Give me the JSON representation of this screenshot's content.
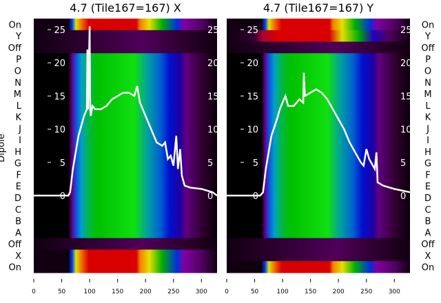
{
  "chart_data": [
    {
      "type": "heatmap",
      "title": "4.7 (Tile167=167) X",
      "ylabel": "Dipole",
      "rows": [
        "On",
        "Y",
        "Off",
        "P",
        "O",
        "N",
        "M",
        "L",
        "K",
        "J",
        "I",
        "H",
        "G",
        "F",
        "E",
        "D",
        "C",
        "B",
        "A",
        "Off",
        "X",
        "On"
      ],
      "row_kind": [
        "hot",
        "off",
        "off",
        "cool",
        "cool",
        "cool",
        "cool",
        "cool",
        "cool",
        "cool",
        "cool",
        "cool",
        "cool",
        "cool",
        "cool",
        "cool",
        "cool",
        "cool",
        "cool",
        "off",
        "hot",
        "hot"
      ],
      "xlim": [
        0,
        328
      ],
      "xticks": [
        0,
        50,
        100,
        150,
        200,
        250,
        300
      ],
      "overlay_yticks": [
        0,
        5,
        10,
        15,
        20,
        25
      ],
      "overlay_ylim": [
        -2.5,
        26.5
      ],
      "overlay_line": {
        "x": [
          0,
          62,
          65,
          70,
          80,
          90,
          95,
          96,
          97,
          100,
          101,
          102,
          105,
          110,
          120,
          130,
          140,
          150,
          160,
          170,
          180,
          185,
          190,
          200,
          210,
          220,
          230,
          235,
          240,
          245,
          250,
          255,
          258,
          262,
          265,
          270,
          280,
          300,
          320,
          328
        ],
        "y": [
          0,
          0,
          0.5,
          4,
          9,
          12,
          13,
          22,
          13,
          25.5,
          13,
          12,
          13.5,
          13,
          13,
          13.5,
          14.5,
          15,
          15.5,
          15.5,
          15,
          16.5,
          14,
          12,
          10,
          8,
          7.5,
          8,
          5.5,
          6,
          4.5,
          9,
          4,
          7,
          3,
          1.5,
          1.2,
          1,
          0.5,
          0
        ]
      }
    },
    {
      "type": "heatmap",
      "title": "4.7 (Tile167=167) Y",
      "rows": [
        "On",
        "Y",
        "Off",
        "P",
        "O",
        "N",
        "M",
        "L",
        "K",
        "J",
        "I",
        "H",
        "G",
        "F",
        "E",
        "D",
        "C",
        "B",
        "A",
        "Off",
        "X",
        "On"
      ],
      "row_kind": [
        "hot",
        "hot2",
        "off",
        "cool",
        "cool",
        "cool",
        "cool",
        "cool",
        "cool",
        "cool",
        "cool",
        "cool",
        "cool",
        "cool",
        "cool",
        "cool",
        "cool",
        "cool",
        "cool",
        "off",
        "off",
        "hot"
      ],
      "xlim": [
        0,
        328
      ],
      "xticks": [
        0,
        50,
        100,
        150,
        200,
        250,
        300
      ],
      "overlay_yticks": [
        0,
        5,
        10,
        15,
        20,
        25
      ],
      "overlay_ylim": [
        -2.5,
        26.5
      ],
      "overlay_line": {
        "x": [
          0,
          60,
          65,
          70,
          80,
          90,
          95,
          100,
          105,
          110,
          120,
          130,
          137,
          138,
          140,
          150,
          160,
          170,
          180,
          190,
          200,
          210,
          220,
          230,
          240,
          245,
          250,
          255,
          265,
          268,
          270,
          280,
          300,
          328
        ],
        "y": [
          0,
          0,
          0.5,
          4,
          9,
          11.5,
          13,
          14,
          15,
          13.5,
          13.5,
          14.5,
          14,
          18.5,
          15,
          15.5,
          16,
          15.5,
          14.5,
          13,
          11.5,
          10,
          8,
          6.5,
          5,
          4.5,
          7,
          5.5,
          4,
          6.5,
          2,
          1.5,
          1,
          0.5
        ]
      }
    }
  ]
}
